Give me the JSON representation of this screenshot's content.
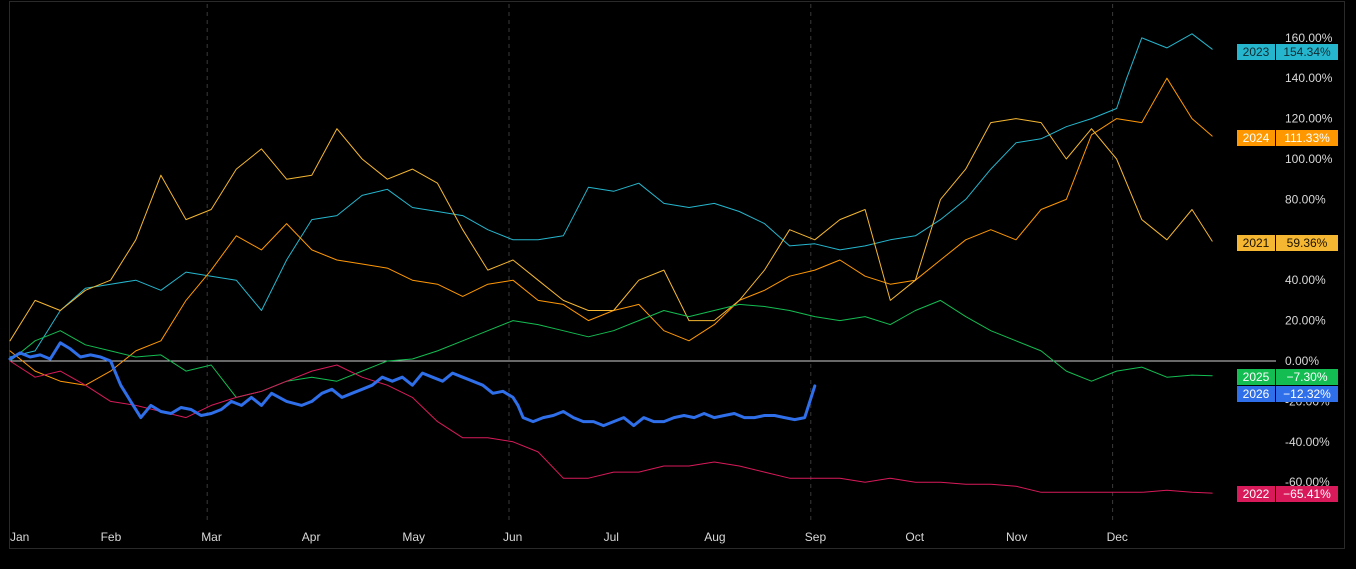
{
  "chart_data": {
    "type": "line",
    "title": "",
    "xlabel": "",
    "ylabel": "",
    "x_unit": "month",
    "x_ticks": [
      "Jan",
      "Feb",
      "Mar",
      "Apr",
      "May",
      "Jun",
      "Jul",
      "Aug",
      "Sep",
      "Oct",
      "Nov",
      "Dec"
    ],
    "y_ticks": [
      "160.00%",
      "140.00%",
      "120.00%",
      "100.00%",
      "80.00%",
      "40.00%",
      "20.00%",
      "0.00%",
      "-20.00%",
      "-40.00%",
      "-60.00%"
    ],
    "ylim": [
      -80,
      160
    ],
    "xlim": [
      0,
      11.95
    ],
    "grid": "vertical dashed lines at month boundaries",
    "zero_line": true,
    "series": [
      {
        "name": "2023",
        "label": "154.34%",
        "color": "#25b6ce",
        "bold": false,
        "x": [
          0,
          0.25,
          0.5,
          0.75,
          1,
          1.25,
          1.5,
          1.75,
          2,
          2.25,
          2.5,
          2.75,
          3,
          3.25,
          3.5,
          3.75,
          4,
          4.25,
          4.5,
          4.75,
          5,
          5.25,
          5.5,
          5.75,
          6,
          6.25,
          6.5,
          6.75,
          7,
          7.25,
          7.5,
          7.75,
          8,
          8.25,
          8.5,
          8.75,
          9,
          9.25,
          9.5,
          9.75,
          10,
          10.25,
          10.5,
          10.75,
          11,
          11.1,
          11.25,
          11.5,
          11.75,
          11.95
        ],
        "y": [
          2,
          5,
          25,
          36,
          38,
          40,
          35,
          44,
          42,
          40,
          25,
          50,
          70,
          72,
          82,
          85,
          76,
          74,
          72,
          65,
          60,
          60,
          62,
          86,
          84,
          88,
          78,
          76,
          78,
          74,
          68,
          57,
          58,
          55,
          57,
          60,
          62,
          70,
          80,
          95,
          108,
          110,
          116,
          120,
          125,
          140,
          160,
          155,
          162,
          154.34
        ]
      },
      {
        "name": "2024",
        "label": "111.33%",
        "color": "#ff9800",
        "bold": false,
        "x": [
          0,
          0.25,
          0.5,
          0.75,
          1,
          1.25,
          1.5,
          1.75,
          2,
          2.25,
          2.5,
          2.75,
          3,
          3.25,
          3.5,
          3.75,
          4,
          4.25,
          4.5,
          4.75,
          5,
          5.25,
          5.5,
          5.75,
          6,
          6.25,
          6.5,
          6.75,
          7,
          7.25,
          7.5,
          7.75,
          8,
          8.25,
          8.5,
          8.75,
          9,
          9.25,
          9.5,
          9.75,
          10,
          10.25,
          10.5,
          10.75,
          11,
          11.25,
          11.5,
          11.75,
          11.95
        ],
        "y": [
          5,
          -5,
          -10,
          -12,
          -5,
          5,
          10,
          30,
          45,
          62,
          55,
          68,
          55,
          50,
          48,
          46,
          40,
          38,
          32,
          38,
          40,
          30,
          28,
          20,
          25,
          28,
          15,
          10,
          18,
          30,
          35,
          42,
          45,
          50,
          42,
          38,
          40,
          50,
          60,
          65,
          60,
          75,
          80,
          112,
          120,
          118,
          140,
          120,
          111.33
        ]
      },
      {
        "name": "2021",
        "label": "59.36%",
        "color": "#f5b731",
        "bold": false,
        "x": [
          0,
          0.25,
          0.5,
          0.75,
          1,
          1.25,
          1.5,
          1.75,
          2,
          2.25,
          2.5,
          2.75,
          3,
          3.25,
          3.5,
          3.75,
          4,
          4.25,
          4.5,
          4.75,
          5,
          5.25,
          5.5,
          5.75,
          6,
          6.25,
          6.5,
          6.75,
          7,
          7.25,
          7.5,
          7.75,
          8,
          8.25,
          8.5,
          8.75,
          9,
          9.25,
          9.5,
          9.75,
          10,
          10.25,
          10.5,
          10.75,
          11,
          11.25,
          11.5,
          11.75,
          11.95
        ],
        "y": [
          10,
          30,
          25,
          35,
          40,
          60,
          92,
          70,
          75,
          95,
          105,
          90,
          92,
          115,
          100,
          90,
          95,
          88,
          65,
          45,
          50,
          40,
          30,
          25,
          25,
          40,
          45,
          20,
          20,
          30,
          45,
          65,
          60,
          70,
          75,
          30,
          40,
          80,
          95,
          118,
          120,
          118,
          100,
          115,
          100,
          70,
          60,
          75,
          59.36
        ]
      },
      {
        "name": "2025",
        "label": "-7.30%",
        "color": "#13bd52",
        "bold": false,
        "x": [
          0,
          0.25,
          0.5,
          0.75,
          1,
          1.25,
          1.5,
          1.75,
          2,
          2.25,
          2.5,
          2.75,
          3,
          3.25,
          3.5,
          3.75,
          4,
          4.25,
          4.5,
          4.75,
          5,
          5.25,
          5.5,
          5.75,
          6,
          6.25,
          6.5,
          6.75,
          7,
          7.25,
          7.5,
          7.75,
          8,
          8.25,
          8.5,
          8.75,
          9,
          9.25,
          9.5,
          9.75,
          10,
          10.25,
          10.5,
          10.75,
          11,
          11.25,
          11.5,
          11.75,
          11.95
        ],
        "y": [
          0,
          10,
          15,
          8,
          5,
          2,
          3,
          -5,
          -2,
          -18,
          -15,
          -10,
          -8,
          -10,
          -5,
          0,
          1,
          5,
          10,
          15,
          20,
          18,
          15,
          12,
          15,
          20,
          25,
          22,
          25,
          28,
          27,
          25,
          22,
          20,
          22,
          18,
          25,
          30,
          22,
          15,
          10,
          5,
          -5,
          -10,
          -5,
          -3,
          -8,
          -7,
          -7.3
        ]
      },
      {
        "name": "2022",
        "label": "-65.41%",
        "color": "#d81a5a",
        "bold": false,
        "x": [
          0,
          0.25,
          0.5,
          0.75,
          1,
          1.25,
          1.5,
          1.75,
          2,
          2.25,
          2.5,
          2.75,
          3,
          3.25,
          3.5,
          3.75,
          4,
          4.25,
          4.5,
          4.75,
          5,
          5.25,
          5.5,
          5.75,
          6,
          6.25,
          6.5,
          6.75,
          7,
          7.25,
          7.5,
          7.75,
          8,
          8.25,
          8.5,
          8.75,
          9,
          9.25,
          9.5,
          9.75,
          10,
          10.25,
          10.5,
          10.75,
          11,
          11.25,
          11.5,
          11.75,
          11.95
        ],
        "y": [
          0,
          -8,
          -5,
          -12,
          -20,
          -22,
          -25,
          -28,
          -22,
          -18,
          -15,
          -10,
          -5,
          -2,
          -8,
          -12,
          -18,
          -30,
          -38,
          -38,
          -40,
          -45,
          -58,
          -58,
          -55,
          -55,
          -52,
          -52,
          -50,
          -52,
          -55,
          -58,
          -58,
          -58,
          -60,
          -58,
          -60,
          -60,
          -61,
          -61,
          -62,
          -65,
          -65,
          -65,
          -65,
          -65,
          -64,
          -65,
          -65.41
        ]
      },
      {
        "name": "2026",
        "label": "-12.32%",
        "color": "#2f6fea",
        "bold": true,
        "x": [
          0,
          0.1,
          0.2,
          0.3,
          0.4,
          0.5,
          0.6,
          0.7,
          0.8,
          0.9,
          1,
          1.1,
          1.2,
          1.3,
          1.4,
          1.5,
          1.6,
          1.7,
          1.8,
          1.9,
          2,
          2.1,
          2.2,
          2.3,
          2.4,
          2.5,
          2.6,
          2.75,
          2.9,
          3,
          3.1,
          3.2,
          3.3,
          3.4,
          3.5,
          3.6,
          3.7,
          3.8,
          3.9,
          4,
          4.1,
          4.2,
          4.3,
          4.4,
          4.5,
          4.6,
          4.7,
          4.8,
          4.9,
          5,
          5.05,
          5.1,
          5.2,
          5.3,
          5.4,
          5.5,
          5.6,
          5.7,
          5.8,
          5.9,
          6,
          6.1,
          6.2,
          6.3,
          6.4,
          6.5,
          6.6,
          6.7,
          6.8,
          6.9,
          7,
          7.1,
          7.2,
          7.3,
          7.4,
          7.5,
          7.6,
          7.7,
          7.8,
          7.9,
          8
        ],
        "y": [
          1,
          4,
          2,
          3,
          1,
          9,
          6,
          2,
          3,
          2,
          0,
          -12,
          -20,
          -28,
          -22,
          -25,
          -26,
          -23,
          -24,
          -27,
          -26,
          -24,
          -20,
          -22,
          -18,
          -22,
          -16,
          -20,
          -22,
          -20,
          -16,
          -14,
          -18,
          -16,
          -14,
          -12,
          -8,
          -10,
          -8,
          -12,
          -6,
          -8,
          -10,
          -6,
          -8,
          -10,
          -12,
          -16,
          -15,
          -18,
          -22,
          -28,
          -30,
          -28,
          -27,
          -25,
          -28,
          -30,
          -30,
          -32,
          -30,
          -28,
          -32,
          -28,
          -30,
          -30,
          -28,
          -27,
          -28,
          -26,
          -28,
          -27,
          -26,
          -28,
          -28,
          -27,
          -27,
          -28,
          -29,
          -28,
          -12.32
        ]
      }
    ],
    "tags": [
      {
        "name": "2023",
        "value": "154.34%",
        "year_bg": "#25b6ce",
        "value_bg": "#25b6ce",
        "text": "#102a30"
      },
      {
        "name": "2024",
        "value": "111.33%",
        "year_bg": "#ff9800",
        "value_bg": "#ff9800",
        "text": "#ffffff"
      },
      {
        "name": "2021",
        "value": "59.36%",
        "year_bg": "#f5b731",
        "value_bg": "#f5b731",
        "text": "#1a1200"
      },
      {
        "name": "2025",
        "value": "−7.30%",
        "year_bg": "#13bd52",
        "value_bg": "#13bd52",
        "text": "#ffffff"
      },
      {
        "name": "2026",
        "value": "−12.32%",
        "year_bg": "#2f6fea",
        "value_bg": "#2f6fea",
        "text": "#ffffff"
      },
      {
        "name": "2022",
        "value": "−65.41%",
        "year_bg": "#d81a5a",
        "value_bg": "#d81a5a",
        "text": "#ffffff"
      }
    ]
  }
}
